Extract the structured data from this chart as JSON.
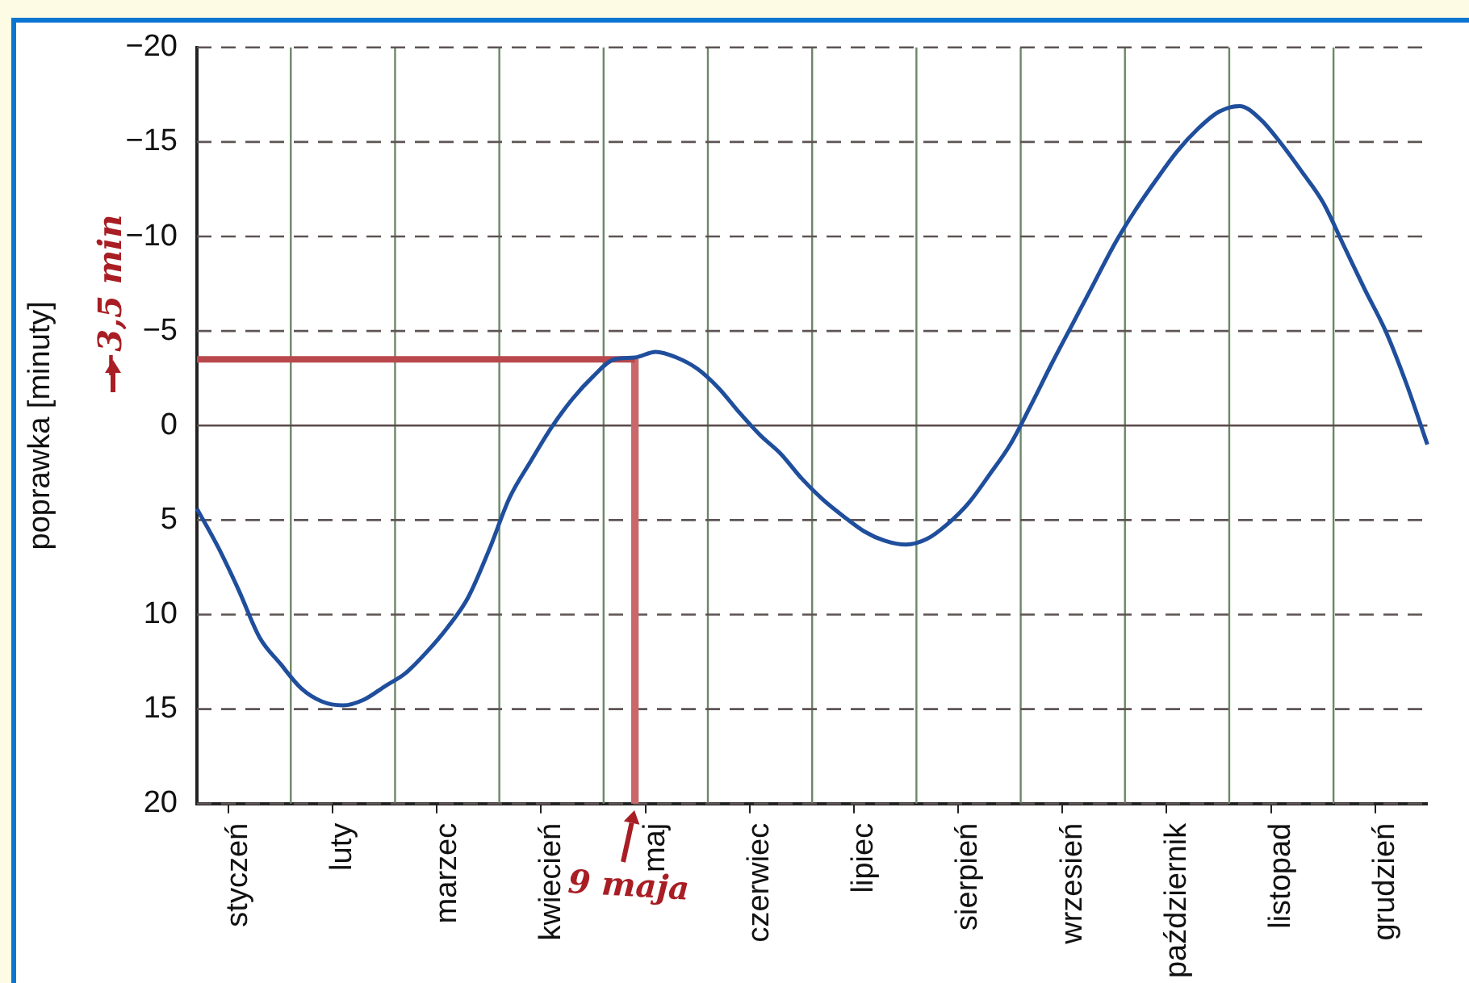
{
  "chart_data": {
    "type": "line",
    "ylabel": "poprawka [minuty]",
    "categories": [
      null,
      null,
      "styczeń",
      null,
      null,
      null,
      null,
      "luty",
      null,
      null,
      null,
      null,
      "marzec",
      null,
      null,
      null,
      null,
      "kwiecień",
      null,
      null,
      null,
      null,
      "maj",
      null,
      null,
      null,
      null,
      "czerwiec",
      null,
      null,
      null,
      null,
      "lipiec",
      null,
      null,
      null,
      null,
      "sierpień",
      null,
      null,
      null,
      null,
      "wrzesień",
      null,
      null,
      null,
      null,
      "październik",
      null,
      null,
      null,
      null,
      "listopad",
      null,
      null,
      null,
      null,
      "grudzień",
      null,
      null
    ],
    "ylim": [
      20,
      -20
    ],
    "yticks": [
      {
        "value": -20,
        "label": "−20"
      },
      {
        "value": -15,
        "label": "−15"
      },
      {
        "value": -10,
        "label": "−10"
      },
      {
        "value": -5,
        "label": "−5"
      },
      0,
      5,
      10,
      15,
      20
    ],
    "grid": true,
    "legend": false,
    "marker": "none",
    "line_style": "solid",
    "series": [
      {
        "color": "#1f4e9c",
        "values": [
          4.4,
          6.4,
          8.7,
          11.2,
          12.6,
          13.9,
          14.6,
          14.8,
          14.5,
          13.8,
          13.1,
          12.0,
          10.7,
          9.1,
          6.6,
          3.8,
          1.9,
          0.1,
          -1.4,
          -2.6,
          -3.5,
          -3.6,
          -3.9,
          -3.6,
          -3.0,
          -2.0,
          -0.7,
          0.5,
          1.5,
          2.8,
          3.9,
          4.8,
          5.6,
          6.1,
          6.3,
          6.0,
          5.2,
          4.1,
          2.6,
          1.0,
          -1.1,
          -3.3,
          -5.4,
          -7.5,
          -9.6,
          -11.4,
          -13.0,
          -14.5,
          -15.7,
          -16.6,
          -16.9,
          -16.2,
          -14.9,
          -13.4,
          -11.8,
          -9.5,
          -7.2,
          -5.0,
          -2.2,
          1.0
        ]
      },
      {
        "type": "line",
        "color": "#b8484c",
        "values": [
          -3.5,
          -3.5,
          -3.5,
          -3.5,
          -3.5,
          -3.5,
          -3.5,
          -3.5,
          -3.5,
          -3.5,
          -3.5,
          -3.5,
          -3.5,
          -3.5,
          -3.5,
          -3.5,
          -3.5,
          -3.5,
          -3.5,
          -3.5,
          -3.5,
          -3.5,
          null,
          null,
          null,
          null,
          null,
          null,
          null,
          null,
          null,
          null,
          null,
          null,
          null,
          null,
          null,
          null,
          null,
          null,
          null,
          null,
          null,
          null,
          null,
          null,
          null,
          null,
          null,
          null,
          null,
          null,
          null,
          null,
          null,
          null,
          null,
          null,
          null,
          null
        ]
      },
      {
        "type": "bar",
        "color": "#c9686b",
        "base": [
          null,
          null,
          null,
          null,
          null,
          null,
          null,
          null,
          null,
          null,
          null,
          null,
          null,
          null,
          null,
          null,
          null,
          null,
          null,
          null,
          null,
          -3.5,
          null,
          null,
          null,
          null,
          null,
          null,
          null,
          null,
          null,
          null,
          null,
          null,
          null,
          null,
          null,
          null,
          null,
          null,
          null,
          null,
          null,
          null,
          null,
          null,
          null,
          null,
          null,
          null,
          null,
          null,
          null,
          null,
          null,
          null,
          null,
          null,
          null,
          null
        ],
        "values": [
          null,
          null,
          null,
          null,
          null,
          null,
          null,
          null,
          null,
          null,
          null,
          null,
          null,
          null,
          null,
          null,
          null,
          null,
          null,
          null,
          null,
          23.5,
          null,
          null,
          null,
          null,
          null,
          null,
          null,
          null,
          null,
          null,
          null,
          null,
          null,
          null,
          null,
          null,
          null,
          null,
          null,
          null,
          null,
          null,
          null,
          null,
          null,
          null,
          null,
          null,
          null,
          null,
          null,
          null,
          null,
          null,
          null,
          null,
          null,
          null
        ]
      }
    ],
    "annotations": [
      "−3,5 min",
      "9 maja"
    ]
  }
}
